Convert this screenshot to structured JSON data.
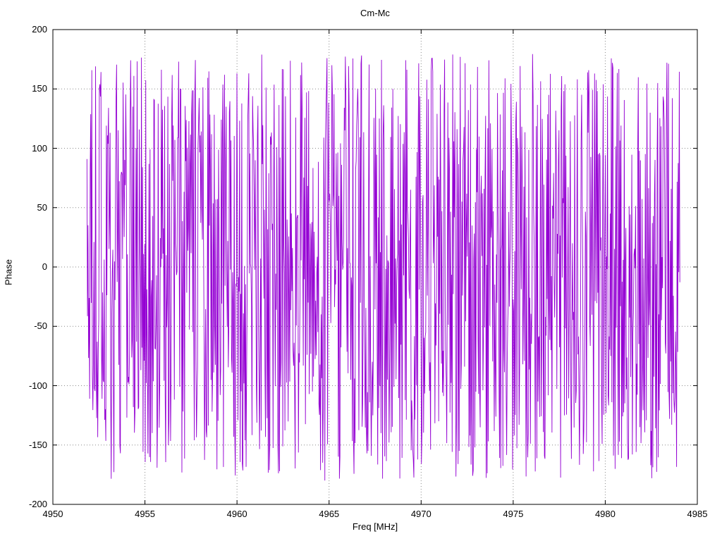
{
  "chart_data": {
    "type": "line",
    "title": "Cm-Mc",
    "xlabel": "Freq [MHz]",
    "ylabel": "Phase",
    "xlim": [
      4950,
      4985
    ],
    "ylim": [
      -200,
      200
    ],
    "x_ticks": [
      4950,
      4955,
      4960,
      4965,
      4970,
      4975,
      4980,
      4985
    ],
    "y_ticks": [
      -200,
      -150,
      -100,
      -50,
      0,
      50,
      100,
      150,
      200
    ],
    "grid": true,
    "legend_position": "none",
    "series": [
      {
        "name": "Cm-Mc",
        "color": "#9400d3",
        "x_start": 4951.85,
        "x_end": 4984.05,
        "n_points": 1100,
        "y_distribution": "uniform",
        "y_range": [
          -180,
          180
        ],
        "seed": 20,
        "note": "Densely wrapped interferometric phase vs frequency; values scatter uniformly between -180 and +180 degrees across 4951.9-4984.1 MHz, rendered as a connected line that fills the plot with vertical strokes"
      }
    ]
  }
}
